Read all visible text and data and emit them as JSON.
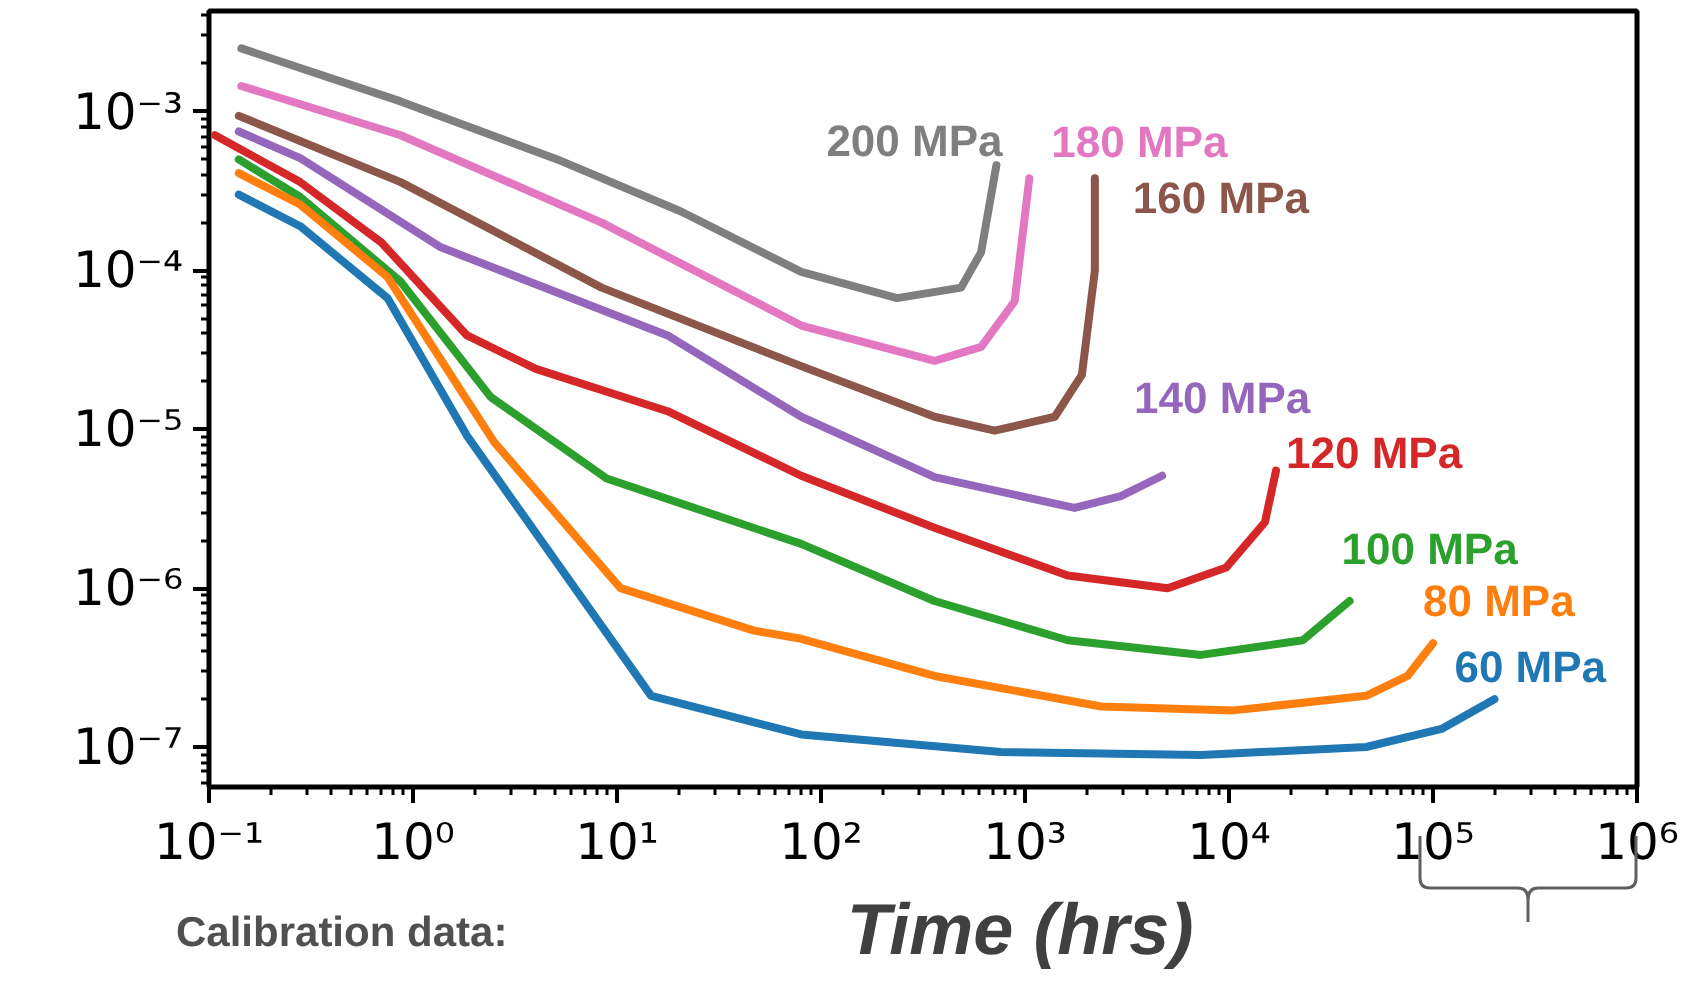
{
  "chart_data": {
    "type": "line",
    "xlabel": "Time (hrs)",
    "log": "xy",
    "grid": false,
    "xlim": [
      0.1,
      1000000
    ],
    "ylim": [
      5.6e-08,
      0.0043
    ],
    "xticks": [
      {
        "value": 0.1,
        "label": "10⁻¹"
      },
      {
        "value": 1,
        "label": "10⁰"
      },
      {
        "value": 10,
        "label": "10¹"
      },
      {
        "value": 100,
        "label": "10²"
      },
      {
        "value": 1000,
        "label": "10³"
      },
      {
        "value": 10000,
        "label": "10⁴"
      },
      {
        "value": 100000,
        "label": "10⁵"
      },
      {
        "value": 1000000,
        "label": "10⁶"
      }
    ],
    "yticks": [
      {
        "value": 1e-07,
        "label": "10⁻⁷"
      },
      {
        "value": 1e-06,
        "label": "10⁻⁶"
      },
      {
        "value": 1e-05,
        "label": "10⁻⁵"
      },
      {
        "value": 0.0001,
        "label": "10⁻⁴"
      },
      {
        "value": 0.001,
        "label": "10⁻³"
      }
    ],
    "series": [
      {
        "name": "200 MPa",
        "color": "#7f7f7f",
        "x": [
          0.144,
          0.87,
          5.3,
          20.6,
          80,
          236,
          486,
          609,
          724
        ],
        "values": [
          0.0025,
          0.00116,
          0.00049,
          0.000235,
          9.8e-05,
          6.7e-05,
          7.8e-05,
          0.00013,
          0.00046
        ]
      },
      {
        "name": "180 MPa",
        "color": "#e377c2",
        "x": [
          0.144,
          0.87,
          8.4,
          80,
          360,
          610,
          890,
          1050
        ],
        "values": [
          0.00145,
          0.00071,
          0.0002,
          4.5e-05,
          2.7e-05,
          3.3e-05,
          6.4e-05,
          0.00038
        ]
      },
      {
        "name": "160 MPa",
        "color": "#8c564b",
        "x": [
          0.14,
          0.87,
          8.4,
          80,
          360,
          710,
          1400,
          1900,
          2200,
          2200
        ],
        "values": [
          0.00094,
          0.00036,
          7.8e-05,
          2.5e-05,
          1.2e-05,
          9.8e-06,
          1.2e-05,
          2.2e-05,
          0.0001,
          0.00038
        ]
      },
      {
        "name": "140 MPa",
        "color": "#9467bd",
        "x": [
          0.14,
          0.28,
          1.37,
          17.7,
          80,
          360,
          1750,
          2950,
          4700
        ],
        "values": [
          0.00075,
          0.00051,
          0.00014,
          3.9e-05,
          1.2e-05,
          5e-06,
          3.2e-06,
          3.8e-06,
          5.1e-06
        ]
      },
      {
        "name": "120 MPa",
        "color": "#d62728",
        "x": [
          0.107,
          0.28,
          0.7,
          1.84,
          4.0,
          17.7,
          80,
          360,
          1620,
          5000,
          9700,
          15000,
          17000
        ],
        "values": [
          0.00071,
          0.00036,
          0.00015,
          3.9e-05,
          2.4e-05,
          1.3e-05,
          5.1e-06,
          2.4e-06,
          1.2e-06,
          1e-06,
          1.35e-06,
          2.6e-06,
          5.5e-06
        ]
      },
      {
        "name": "100 MPa",
        "color": "#2ca02c",
        "x": [
          0.14,
          0.28,
          0.87,
          2.4,
          8.9,
          80,
          360,
          1620,
          7300,
          23000,
          39000
        ],
        "values": [
          0.0005,
          0.00029,
          8.5e-05,
          1.6e-05,
          4.9e-06,
          1.9e-06,
          8.3e-07,
          4.7e-07,
          3.8e-07,
          4.7e-07,
          8.3e-07
        ]
      },
      {
        "name": "80 MPa",
        "color": "#ff7f0e",
        "x": [
          0.14,
          0.28,
          0.75,
          2.5,
          10.4,
          47,
          80,
          360,
          2360,
          10500,
          47000,
          75000,
          100000
        ],
        "values": [
          0.00041,
          0.00026,
          9.1e-05,
          8.3e-06,
          1e-06,
          5.4e-07,
          4.8e-07,
          2.8e-07,
          1.8e-07,
          1.7e-07,
          2.1e-07,
          2.8e-07,
          4.5e-07
        ]
      },
      {
        "name": "60 MPa",
        "color": "#1f77b4",
        "x": [
          0.14,
          0.28,
          0.75,
          1.84,
          14.7,
          80,
          760,
          7300,
          47000,
          110000,
          200000
        ],
        "values": [
          0.0003,
          0.00019,
          6.7e-05,
          9.1e-06,
          2.1e-07,
          1.2e-07,
          9.3e-08,
          8.9e-08,
          1e-07,
          1.3e-07,
          2e-07
        ]
      }
    ],
    "annotations": [
      "Calibration data:"
    ]
  }
}
